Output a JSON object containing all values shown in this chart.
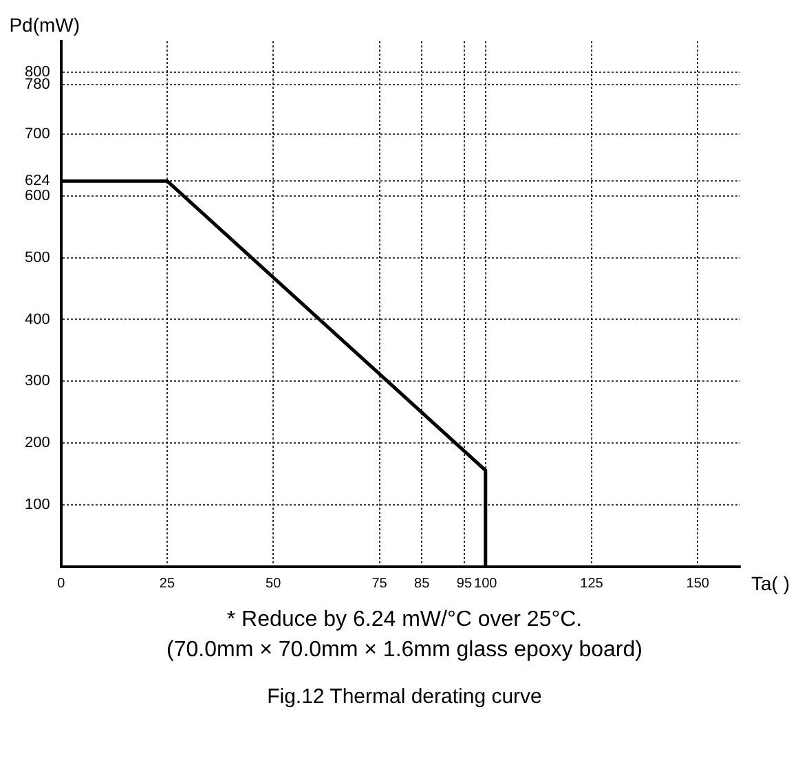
{
  "chart_data": {
    "type": "line",
    "title": "Fig.12 Thermal derating curve",
    "xlabel": "Ta( )",
    "ylabel": "Pd(mW)",
    "x": [
      0,
      25,
      100,
      100
    ],
    "series": [
      {
        "color": "#000000",
        "values": [
          624,
          624,
          156,
          0
        ]
      }
    ],
    "xlim": [
      0,
      160
    ],
    "xticks": [
      0,
      25,
      50,
      75,
      85,
      95,
      100,
      125,
      150
    ],
    "ylim": [
      0,
      850
    ],
    "yticks": [
      100,
      200,
      300,
      400,
      500,
      600,
      624,
      700,
      780,
      800
    ],
    "grid": true,
    "legend": false,
    "marker": "none",
    "line_style": "solid",
    "annotations": [
      "*  Reduce by 6.24 mW/°C over 25°C.",
      "(70.0mm × 70.0mm × 1.6mm glass epoxy board)"
    ]
  }
}
